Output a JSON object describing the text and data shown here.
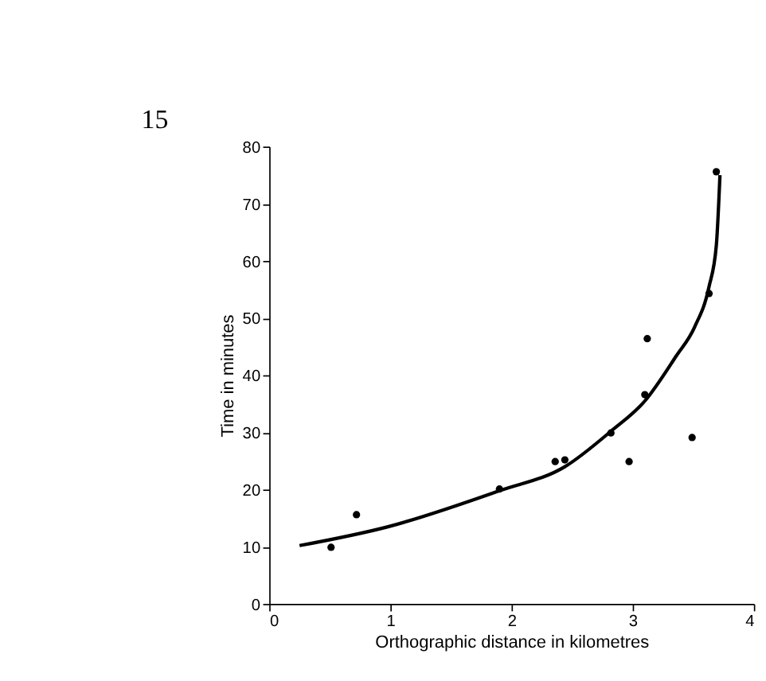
{
  "chart_data": {
    "type": "scatter",
    "xlabel": "Orthographic distance in kilometres",
    "ylabel": "Time in minutes",
    "annotations": [
      "15"
    ],
    "xlim": [
      0,
      4
    ],
    "xticks": [
      0,
      1,
      2,
      3,
      4
    ],
    "ylim": [
      0,
      80
    ],
    "yticks": [
      0,
      10,
      20,
      30,
      40,
      50,
      60,
      70,
      80
    ],
    "grid": false,
    "series": [
      {
        "color": "#000000",
        "marker": "circle",
        "x": [
          0.51,
          0.72,
          1.9,
          2.36,
          2.44,
          2.82,
          2.97,
          3.1,
          3.12,
          3.49,
          3.63,
          3.69
        ],
        "values": [
          9.9,
          15.6,
          20.1,
          24.9,
          25.2,
          29.9,
          24.9,
          36.6,
          46.4,
          29.1,
          54.3,
          75.6
        ]
      },
      {
        "type": "line",
        "color": "#000000",
        "line_style": "solid",
        "x": [
          0.25,
          0.98,
          1.9,
          2.44,
          2.82,
          3.1,
          3.36,
          3.51,
          3.63,
          3.69,
          3.72
        ],
        "values": [
          10.2,
          13.5,
          19.8,
          24,
          30.2,
          35.5,
          43.4,
          48.4,
          55.5,
          62.7,
          75
        ]
      }
    ]
  }
}
